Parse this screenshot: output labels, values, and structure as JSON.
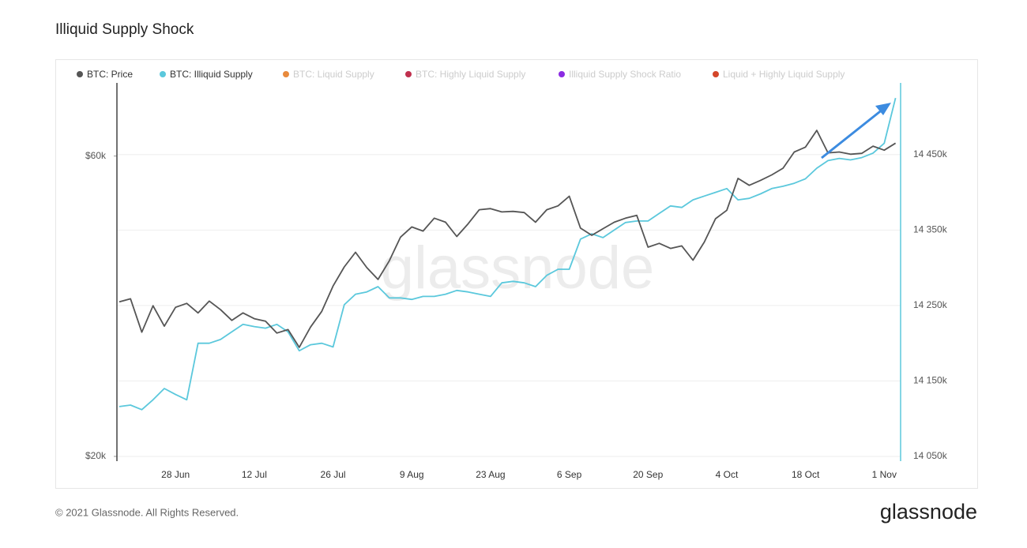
{
  "chart_data": {
    "type": "line",
    "title": "Illiquid Supply Shock",
    "watermark": "glassnode",
    "footer": "© 2021 Glassnode. All Rights Reserved.",
    "brand": "glassnode",
    "categories": [
      null,
      null,
      null,
      null,
      null,
      "28 Jun",
      null,
      null,
      null,
      null,
      null,
      null,
      "12 Jul",
      null,
      null,
      null,
      null,
      null,
      null,
      "26 Jul",
      null,
      null,
      null,
      null,
      null,
      null,
      "9 Aug",
      null,
      null,
      null,
      null,
      null,
      null,
      "23 Aug",
      null,
      null,
      null,
      null,
      null,
      null,
      "6 Sep",
      null,
      null,
      null,
      null,
      null,
      null,
      "20 Sep",
      null,
      null,
      null,
      null,
      null,
      null,
      "4 Oct",
      null,
      null,
      null,
      null,
      null,
      null,
      "18 Oct",
      null,
      null,
      null,
      null,
      null,
      null,
      "1 Nov",
      null
    ],
    "series": [
      {
        "name": "BTC: Price",
        "color": "#555555",
        "axis": "y",
        "values": [
          35200,
          35600,
          31500,
          34700,
          32200,
          34500,
          35000,
          33800,
          35300,
          34200,
          32900,
          33800,
          33100,
          32800,
          31400,
          31800,
          29800,
          32100,
          34000,
          37300,
          40000,
          42200,
          39900,
          38200,
          40900,
          44600,
          46300,
          45600,
          47800,
          47100,
          44700,
          46800,
          49300,
          49500,
          48900,
          49000,
          48800,
          47100,
          49300,
          50000,
          51800,
          46100,
          44900,
          46000,
          47100,
          47800,
          48300,
          43000,
          43600,
          42800,
          43200,
          41000,
          43800,
          47700,
          49200,
          55300,
          53900,
          54900,
          56000,
          57400,
          60900,
          62000,
          65900,
          60700,
          60900,
          60400,
          60600,
          62200,
          61300,
          62900
        ]
      },
      {
        "name": "BTC: Illiquid Supply",
        "color": "#5bc8dc",
        "axis": "y2",
        "values": [
          14116,
          14118,
          14112,
          14125,
          14140,
          14132,
          14125,
          14200,
          14200,
          14205,
          14215,
          14225,
          14222,
          14220,
          14225,
          14215,
          14190,
          14198,
          14200,
          14195,
          14251,
          14265,
          14268,
          14275,
          14260,
          14260,
          14258,
          14262,
          14262,
          14265,
          14270,
          14268,
          14265,
          14262,
          14280,
          14282,
          14280,
          14275,
          14290,
          14298,
          14298,
          14338,
          14345,
          14340,
          14350,
          14360,
          14362,
          14362,
          14372,
          14382,
          14380,
          14390,
          14395,
          14400,
          14405,
          14390,
          14392,
          14398,
          14405,
          14408,
          14412,
          14418,
          14432,
          14442,
          14445,
          14443,
          14446,
          14452,
          14465,
          14525
        ]
      }
    ],
    "hidden_series": [
      {
        "name": "BTC: Liquid Supply",
        "color": "#e88a3c"
      },
      {
        "name": "BTC: Highly Liquid Supply",
        "color": "#c0304e"
      },
      {
        "name": "Illiquid Supply Shock Ratio",
        "color": "#8b2be2"
      },
      {
        "name": "Liquid + Highly Liquid Supply",
        "color": "#d4462a"
      }
    ],
    "log_scale": true,
    "ylim": [
      20000,
      78400
    ],
    "yticks": [
      {
        "value": 20000,
        "label": "$20k"
      },
      {
        "value": 60000,
        "label": "$60k"
      }
    ],
    "y2lim": [
      14050,
      14545
    ],
    "y2ticks": [
      {
        "value": 14050,
        "label": "14 050k"
      },
      {
        "value": 14150,
        "label": "14 150k"
      },
      {
        "value": 14250,
        "label": "14 250k"
      },
      {
        "value": 14350,
        "label": "14 350k"
      },
      {
        "value": 14450,
        "label": "14 450k"
      }
    ],
    "grid": true,
    "legend": "top"
  }
}
